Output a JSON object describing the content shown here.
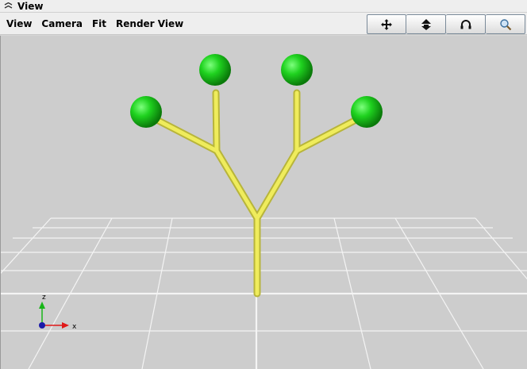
{
  "window": {
    "title": "View"
  },
  "menu": [
    {
      "label": "View"
    },
    {
      "label": "Camera"
    },
    {
      "label": "Fit"
    },
    {
      "label": "Render View"
    }
  ],
  "toolbar": [
    {
      "icon": "move-icon",
      "tooltip": ""
    },
    {
      "icon": "fly-arrow-icon",
      "tooltip": ""
    },
    {
      "icon": "orbit-icon",
      "tooltip": ""
    },
    {
      "icon": "zoom-icon",
      "tooltip": ""
    }
  ],
  "axes": {
    "z_label": "z",
    "x_label": "x"
  },
  "colors": {
    "branch": "#e6e34d",
    "node": "#1fbf1f",
    "background": "#cdcdcd",
    "grid": "#f2f2f2"
  }
}
